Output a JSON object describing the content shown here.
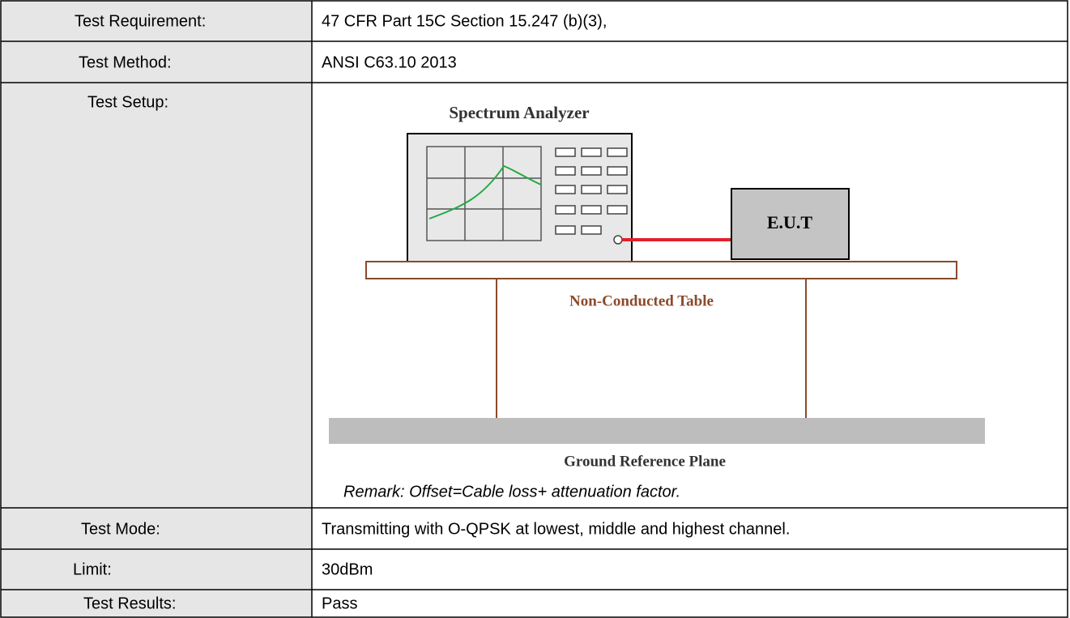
{
  "rows": [
    {
      "label": "Test Requirement:",
      "value": "47 CFR Part 15C Section 15.247 (b)(3),"
    },
    {
      "label": "Test Method:",
      "value": "ANSI C63.10 2013"
    },
    {
      "label": "Test Setup:",
      "diagram": {
        "analyzer": "Spectrum Analyzer",
        "eut": "E.U.T",
        "table": "Non-Conducted Table",
        "ground": "Ground Reference Plane"
      },
      "remark": "Remark: Offset=Cable loss+ attenuation factor."
    },
    {
      "label": "Test Mode:",
      "value": "Transmitting with O-QPSK at lowest, middle and highest channel."
    },
    {
      "label": "Limit:",
      "value": "30dBm"
    },
    {
      "label": "Test Results:",
      "value": "Pass"
    }
  ]
}
